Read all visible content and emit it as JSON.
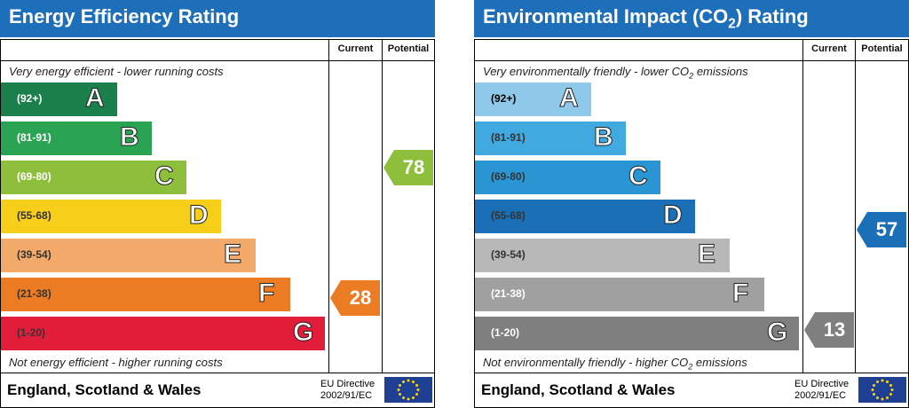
{
  "energy": {
    "title": "Energy Efficiency Rating",
    "col_current": "Current",
    "col_potential": "Potential",
    "top_caption": "Very energy efficient - lower running costs",
    "bottom_caption": "Not energy efficient - higher running costs",
    "footer": "England, Scotland & Wales",
    "eu_line1": "EU Directive",
    "eu_line2": "2002/91/EC",
    "bands": [
      {
        "range": "(92+)",
        "letter": "A",
        "color": "#1a7f4b"
      },
      {
        "range": "(81-91)",
        "letter": "B",
        "color": "#2aa452"
      },
      {
        "range": "(69-80)",
        "letter": "C",
        "color": "#8dbf3c"
      },
      {
        "range": "(55-68)",
        "letter": "D",
        "color": "#f7cf1b"
      },
      {
        "range": "(39-54)",
        "letter": "E",
        "color": "#f2a96a"
      },
      {
        "range": "(21-38)",
        "letter": "F",
        "color": "#ec7c23"
      },
      {
        "range": "(1-20)",
        "letter": "G",
        "color": "#e21d3a"
      }
    ],
    "current": {
      "value": "28",
      "color": "#ec7c23"
    },
    "potential": {
      "value": "78",
      "color": "#8dbf3c"
    }
  },
  "environment": {
    "title_pre": "Environmental Impact (CO",
    "title_sub": "2",
    "title_post": ") Rating",
    "col_current": "Current",
    "col_potential": "Potential",
    "top_caption_pre": "Very environmentally friendly - lower CO",
    "top_caption_sub": "2",
    "top_caption_post": " emissions",
    "bottom_caption_pre": "Not environmentally friendly - higher CO",
    "bottom_caption_sub": "2",
    "bottom_caption_post": " emissions",
    "footer": "England, Scotland & Wales",
    "eu_line1": "EU Directive",
    "eu_line2": "2002/91/EC",
    "bands": [
      {
        "range": "(92+)",
        "letter": "A",
        "color": "#8fc9ea"
      },
      {
        "range": "(81-91)",
        "letter": "B",
        "color": "#3fa9e0"
      },
      {
        "range": "(69-80)",
        "letter": "C",
        "color": "#2a95d3"
      },
      {
        "range": "(55-68)",
        "letter": "D",
        "color": "#1a6fb6"
      },
      {
        "range": "(39-54)",
        "letter": "E",
        "color": "#b8b8b8"
      },
      {
        "range": "(21-38)",
        "letter": "F",
        "color": "#a0a0a0"
      },
      {
        "range": "(1-20)",
        "letter": "G",
        "color": "#7f7f7f"
      }
    ],
    "current": {
      "value": "13",
      "color": "#7f7f7f"
    },
    "potential": {
      "value": "57",
      "color": "#1a6fb6"
    }
  }
}
